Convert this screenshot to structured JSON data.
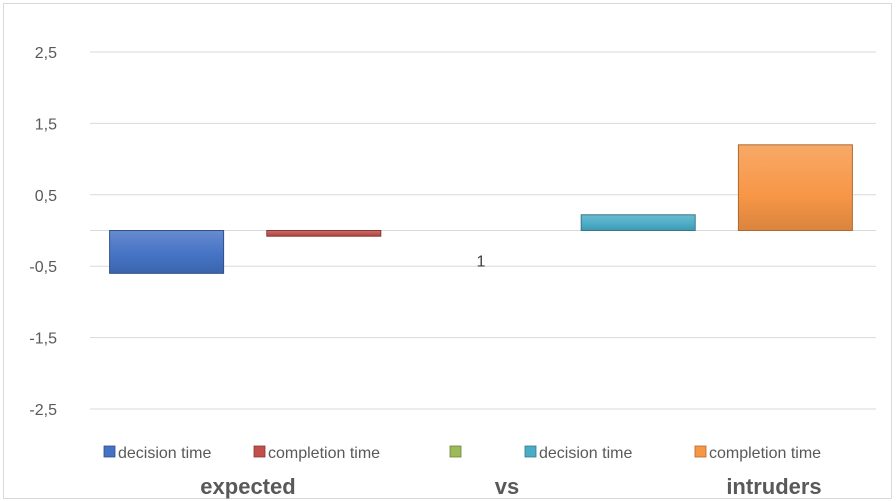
{
  "chart_data": {
    "type": "bar",
    "title": "",
    "xlabel": "",
    "ylabel": "",
    "ylim": [
      -3,
      3
    ],
    "y_ticks": [
      "2,5",
      "1,5",
      "0,5",
      "-0,5",
      "-1,5",
      "-2,5"
    ],
    "y_tick_values": [
      2.5,
      1.5,
      0.5,
      -0.5,
      -1.5,
      -2.5
    ],
    "grid": true,
    "legend_position": "bottom",
    "category_labels": [
      "expected",
      "vs",
      "intruders"
    ],
    "series": [
      {
        "name": "decision time",
        "value": -0.6,
        "color": "#4472c4",
        "label": ""
      },
      {
        "name": "completion time",
        "value": -0.08,
        "color": "#c0504d",
        "label": ""
      },
      {
        "name": "",
        "value": 0,
        "color": "#9bbb59",
        "label": "1"
      },
      {
        "name": "decision time",
        "value": 0.22,
        "color": "#4bacc6",
        "label": ""
      },
      {
        "name": "completion time",
        "value": 1.2,
        "color": "#f79646",
        "label": ""
      }
    ]
  }
}
